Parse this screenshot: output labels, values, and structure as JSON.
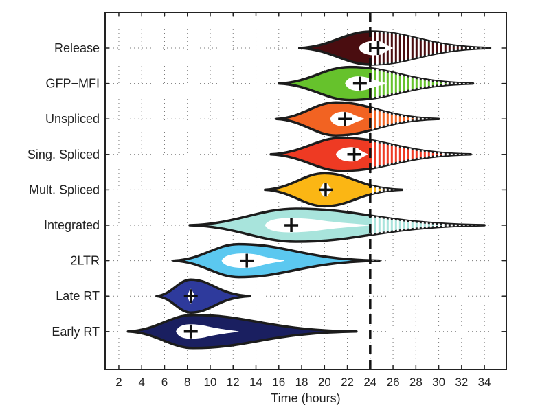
{
  "chart_data": {
    "type": "violin",
    "title": "",
    "xlabel": "Time (hours)",
    "ylabel": "",
    "xlim": [
      0,
      35
    ],
    "xticks": [
      2,
      4,
      6,
      8,
      10,
      12,
      14,
      16,
      18,
      20,
      22,
      24,
      26,
      28,
      30,
      32,
      34
    ],
    "grid": true,
    "reference_line": {
      "x": 24,
      "style": "dashed"
    },
    "categories": [
      "Release",
      "GFP−MFI",
      "Unspliced",
      "Sing. Spliced",
      "Mult. Spliced",
      "Integrated",
      "2LTR",
      "Late RT",
      "Early RT"
    ],
    "series": [
      {
        "name": "Release",
        "color": "#4a0d10",
        "min": 17.8,
        "max": 34.5,
        "mean": 24.7,
        "peak": 24.0,
        "inner": [
          23.0,
          26.0
        ]
      },
      {
        "name": "GFP−MFI",
        "color": "#66c22c",
        "min": 16.0,
        "max": 33.0,
        "mean": 23.1,
        "peak": 22.2,
        "inner": [
          21.8,
          25.5
        ]
      },
      {
        "name": "Unspliced",
        "color": "#f26322",
        "min": 15.8,
        "max": 30.0,
        "mean": 21.8,
        "peak": 21.0,
        "inner": [
          20.5,
          23.5
        ]
      },
      {
        "name": "Sing. Spliced",
        "color": "#ee3a23",
        "min": 15.3,
        "max": 32.8,
        "mean": 22.6,
        "peak": 21.5,
        "inner": [
          21.0,
          23.8
        ]
      },
      {
        "name": "Mult. Spliced",
        "color": "#fbb614",
        "min": 14.8,
        "max": 26.8,
        "mean": 20.1,
        "peak": 20.0,
        "inner": [
          19.6,
          20.7
        ]
      },
      {
        "name": "Integrated",
        "color": "#a8e4dc",
        "min": 8.2,
        "max": 34.0,
        "mean": 17.1,
        "peak": 17.5,
        "inner": [
          14.8,
          24.0
        ]
      },
      {
        "name": "2LTR",
        "color": "#5bc8f0",
        "min": 6.8,
        "max": 24.8,
        "mean": 13.2,
        "peak": 12.5,
        "inner": [
          11.0,
          16.5
        ]
      },
      {
        "name": "Late RT",
        "color": "#2e3a9c",
        "min": 5.3,
        "max": 13.5,
        "mean": 8.3,
        "peak": 8.3,
        "inner": [
          8.0,
          8.7
        ]
      },
      {
        "name": "Early RT",
        "color": "#1a1f60",
        "min": 2.8,
        "max": 22.8,
        "mean": 8.3,
        "peak": 8.5,
        "inner": [
          7.0,
          12.5
        ]
      }
    ]
  }
}
